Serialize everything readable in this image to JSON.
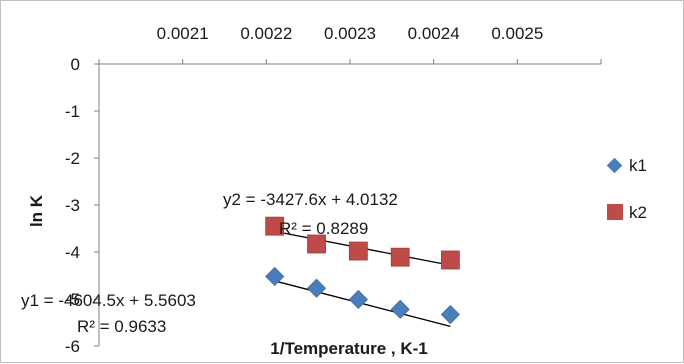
{
  "chart_data": {
    "type": "scatter",
    "xlabel": "1/Temperature , K-1",
    "ylabel": "ln K",
    "xlim": [
      0.002,
      0.0026
    ],
    "ylim": [
      -6,
      0
    ],
    "x_ticks": [
      "0.0021",
      "0.0022",
      "0.0023",
      "0.0024",
      "0.0025"
    ],
    "y_ticks": [
      "0",
      "-1",
      "-2",
      "-3",
      "-4",
      "-5",
      "-6"
    ],
    "x_axis_position": "top",
    "grid": false,
    "legend_position": "right",
    "series": [
      {
        "name": "k1",
        "marker": "diamond",
        "color": "#4a7ebb",
        "points": [
          {
            "x": 0.00221,
            "y": -4.52
          },
          {
            "x": 0.00226,
            "y": -4.77
          },
          {
            "x": 0.00231,
            "y": -5.01
          },
          {
            "x": 0.00236,
            "y": -5.22
          },
          {
            "x": 0.00242,
            "y": -5.33
          }
        ],
        "trendline": {
          "slope": -4604.5,
          "intercept": 5.5603
        }
      },
      {
        "name": "k2",
        "marker": "square",
        "color": "#be4b48",
        "points": [
          {
            "x": 0.00221,
            "y": -3.45
          },
          {
            "x": 0.00226,
            "y": -3.83
          },
          {
            "x": 0.00231,
            "y": -3.98
          },
          {
            "x": 0.00236,
            "y": -4.11
          },
          {
            "x": 0.00242,
            "y": -4.17
          }
        ],
        "trendline": {
          "slope": -3427.6,
          "intercept": 4.0132
        }
      }
    ],
    "annotations": {
      "k2_equation": "y2 = -3427.6x + 4.0132",
      "k2_r2": "R² = 0.8289",
      "k1_equation": "y1 = -4604.5x + 5.5603",
      "k1_r2": "R² = 0.9633"
    }
  }
}
